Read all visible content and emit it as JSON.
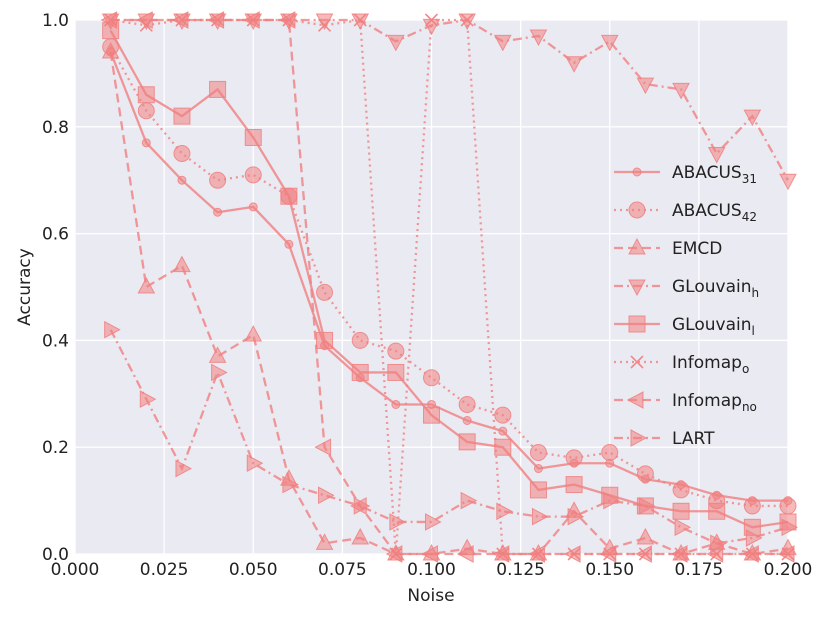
{
  "chart_data": {
    "type": "line",
    "title": "",
    "xlabel": "Noise",
    "ylabel": "Accuracy",
    "xlim": [
      0.0,
      0.2
    ],
    "ylim": [
      0.0,
      1.0
    ],
    "xticks": [
      "0.000",
      "0.025",
      "0.050",
      "0.075",
      "0.100",
      "0.125",
      "0.150",
      "0.175",
      "0.200"
    ],
    "yticks": [
      "0.0",
      "0.2",
      "0.4",
      "0.6",
      "0.8",
      "1.0"
    ],
    "grid": true,
    "legend_position": "right",
    "color": "#f08080",
    "background": "#eaeaf2",
    "x": [
      0.01,
      0.02,
      0.03,
      0.04,
      0.05,
      0.06,
      0.07,
      0.08,
      0.09,
      0.1,
      0.11,
      0.12,
      0.13,
      0.14,
      0.15,
      0.16,
      0.17,
      0.18,
      0.19,
      0.2
    ],
    "series": [
      {
        "name": "ABACUS",
        "sub": "31",
        "marker": "circle-small",
        "dash": "solid",
        "values": [
          0.94,
          0.77,
          0.7,
          0.64,
          0.65,
          0.58,
          0.39,
          0.33,
          0.28,
          0.28,
          0.25,
          0.23,
          0.16,
          0.17,
          0.17,
          0.14,
          0.13,
          0.11,
          0.1,
          0.1
        ]
      },
      {
        "name": "ABACUS",
        "sub": "42",
        "marker": "circle",
        "dash": "dotted",
        "values": [
          0.95,
          0.83,
          0.75,
          0.7,
          0.71,
          0.67,
          0.49,
          0.4,
          0.38,
          0.33,
          0.28,
          0.26,
          0.19,
          0.18,
          0.19,
          0.15,
          0.12,
          0.1,
          0.09,
          0.09
        ]
      },
      {
        "name": "EMCD",
        "sub": "",
        "marker": "triangle-up",
        "dash": "dashed",
        "values": [
          0.94,
          0.5,
          0.54,
          0.37,
          0.41,
          0.14,
          0.02,
          0.03,
          0.0,
          0.0,
          0.01,
          0.0,
          0.0,
          0.08,
          0.01,
          0.03,
          0.0,
          0.02,
          0.0,
          0.01
        ]
      },
      {
        "name": "GLouvain",
        "sub": "h",
        "marker": "triangle-down",
        "dash": "dashdot",
        "values": [
          1.0,
          1.0,
          1.0,
          1.0,
          1.0,
          1.0,
          1.0,
          1.0,
          0.96,
          0.99,
          1.0,
          0.96,
          0.97,
          0.92,
          0.96,
          0.88,
          0.87,
          0.75,
          0.82,
          0.7
        ]
      },
      {
        "name": "GLouvain",
        "sub": "l",
        "marker": "square",
        "dash": "solid",
        "values": [
          0.98,
          0.86,
          0.82,
          0.87,
          0.78,
          0.67,
          0.4,
          0.34,
          0.34,
          0.26,
          0.21,
          0.2,
          0.12,
          0.13,
          0.11,
          0.09,
          0.08,
          0.08,
          0.05,
          0.06
        ]
      },
      {
        "name": "Infomap",
        "sub": "o",
        "marker": "x",
        "dash": "dotted",
        "values": [
          1.0,
          0.99,
          1.0,
          1.0,
          1.0,
          1.0,
          0.99,
          1.0,
          0.0,
          1.0,
          1.0,
          0.0,
          0.0,
          0.0,
          0.0,
          0.0,
          0.0,
          0.0,
          0.0,
          0.0
        ]
      },
      {
        "name": "Infomap",
        "sub": "no",
        "marker": "triangle-left",
        "dash": "dashed",
        "values": [
          1.0,
          1.0,
          1.0,
          1.0,
          1.0,
          1.0,
          0.2,
          0.09,
          0.0,
          0.0,
          0.0,
          0.0,
          0.0,
          0.0,
          0.0,
          0.0,
          0.0,
          0.0,
          0.0,
          0.0
        ]
      },
      {
        "name": "LART",
        "sub": "",
        "marker": "triangle-right",
        "dash": "dashdot",
        "values": [
          0.42,
          0.29,
          0.16,
          0.34,
          0.17,
          0.13,
          0.11,
          0.09,
          0.06,
          0.06,
          0.1,
          0.08,
          0.07,
          0.07,
          0.1,
          0.09,
          0.05,
          0.02,
          0.03,
          0.05
        ]
      }
    ]
  }
}
